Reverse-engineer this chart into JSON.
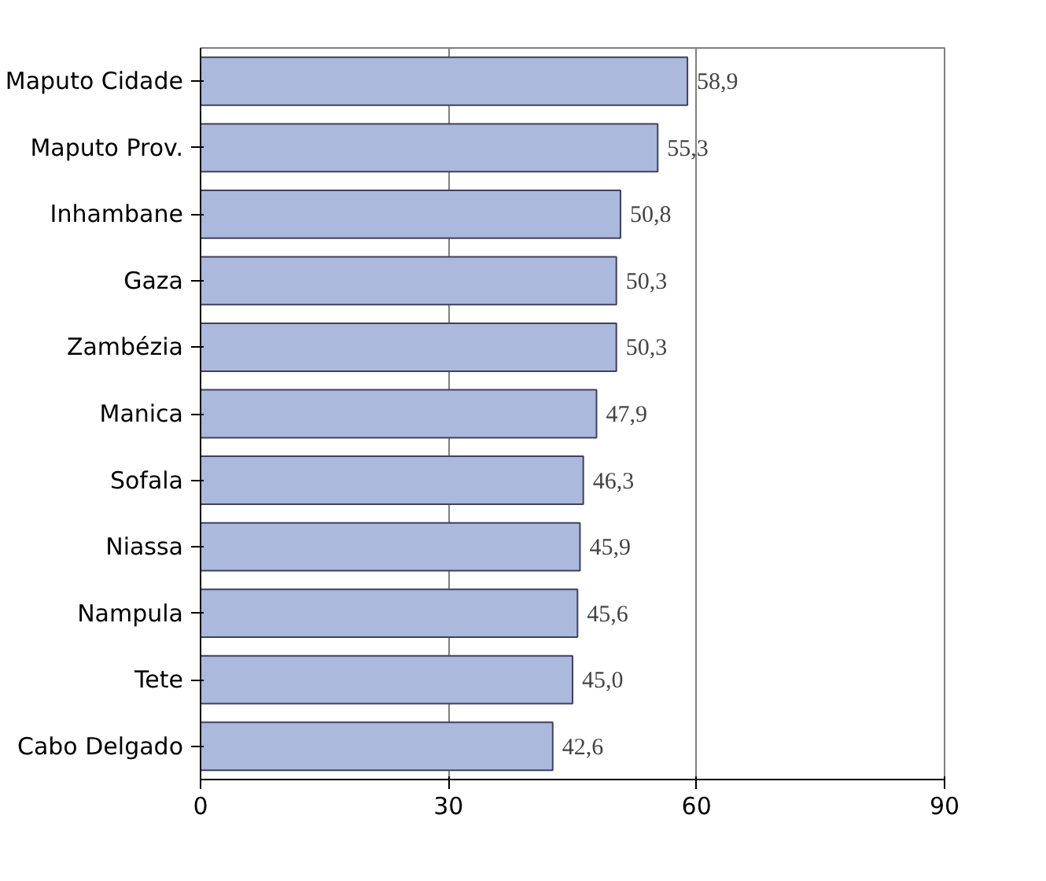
{
  "chart_data": {
    "type": "bar",
    "orientation": "horizontal",
    "categories": [
      "Maputo Cidade",
      "Maputo Prov.",
      "Inhambane",
      "Gaza",
      "Zambézia",
      "Manica",
      "Sofala",
      "Niassa",
      "Nampula",
      "Tete",
      "Cabo Delgado"
    ],
    "values": [
      58.9,
      55.3,
      50.8,
      50.3,
      50.3,
      47.9,
      46.3,
      45.9,
      45.6,
      45.0,
      42.6
    ],
    "value_labels": [
      "58,9",
      "55,3",
      "50,8",
      "50,3",
      "50,3",
      "47,9",
      "46,3",
      "45,9",
      "45,6",
      "45,0",
      "42,6"
    ],
    "color": "#aab9dc",
    "xlim": [
      0,
      90
    ],
    "xticks": [
      0,
      30,
      60,
      90
    ],
    "grid": "x"
  }
}
